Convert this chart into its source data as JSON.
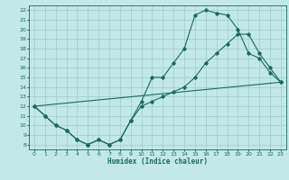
{
  "xlabel": "Humidex (Indice chaleur)",
  "bg_color": "#c2e8e8",
  "grid_color": "#a0cccc",
  "line_color": "#1a6b5a",
  "xlim": [
    -0.5,
    23.5
  ],
  "ylim": [
    7.5,
    22.5
  ],
  "xticks": [
    0,
    1,
    2,
    3,
    4,
    5,
    6,
    7,
    8,
    9,
    10,
    11,
    12,
    13,
    14,
    15,
    16,
    17,
    18,
    19,
    20,
    21,
    22,
    23
  ],
  "yticks": [
    8,
    9,
    10,
    11,
    12,
    13,
    14,
    15,
    16,
    17,
    18,
    19,
    20,
    21,
    22
  ],
  "line1_x": [
    0,
    1,
    2,
    3,
    4,
    5,
    6,
    7,
    8,
    9,
    10,
    11,
    12,
    13,
    14,
    15,
    16,
    17,
    18,
    19,
    20,
    21,
    22,
    23
  ],
  "line1_y": [
    12,
    11,
    10,
    9.5,
    8.5,
    8,
    8.5,
    8,
    8.5,
    10.5,
    12.5,
    15,
    15,
    16.5,
    18,
    21.5,
    22,
    21.7,
    21.5,
    20,
    17.5,
    17,
    15.5,
    14.5
  ],
  "line2_x": [
    0,
    1,
    2,
    3,
    4,
    5,
    6,
    7,
    8,
    9,
    10,
    11,
    12,
    13,
    14,
    15,
    16,
    17,
    18,
    19,
    20,
    21,
    22,
    23
  ],
  "line2_y": [
    12,
    11,
    10,
    9.5,
    8.5,
    8,
    8.5,
    8,
    8.5,
    10.5,
    12,
    12.5,
    13,
    13.5,
    14,
    15,
    16.5,
    17.5,
    18.5,
    19.5,
    19.5,
    17.5,
    16,
    14.5
  ],
  "line3_x": [
    0,
    23
  ],
  "line3_y": [
    12,
    14.5
  ]
}
